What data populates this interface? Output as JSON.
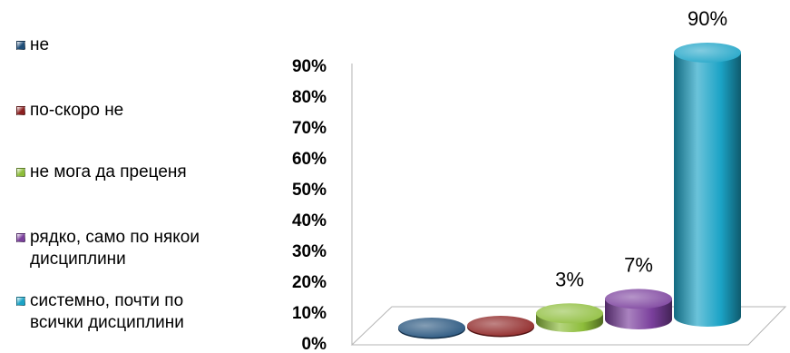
{
  "chart_data": {
    "type": "bar",
    "style": "3d-cylinder",
    "categories": [
      "не",
      "по-скоро не",
      "не мога да преценя",
      "рядко, само по някои\nдисциплини",
      "системно, почти по\nвсички дисциплини"
    ],
    "values": [
      0,
      0,
      3,
      7,
      90
    ],
    "data_labels": [
      "",
      "",
      "3%",
      "7%",
      "90%"
    ],
    "colors": [
      "#1f4e79",
      "#8b1f1f",
      "#8dbd3a",
      "#7a3f9c",
      "#1ba3c6"
    ],
    "y_ticks": [
      "0%",
      "10%",
      "20%",
      "30%",
      "40%",
      "50%",
      "60%",
      "70%",
      "80%",
      "90%"
    ],
    "ylim": [
      0,
      90
    ],
    "grid": false,
    "legend_position": "left"
  }
}
